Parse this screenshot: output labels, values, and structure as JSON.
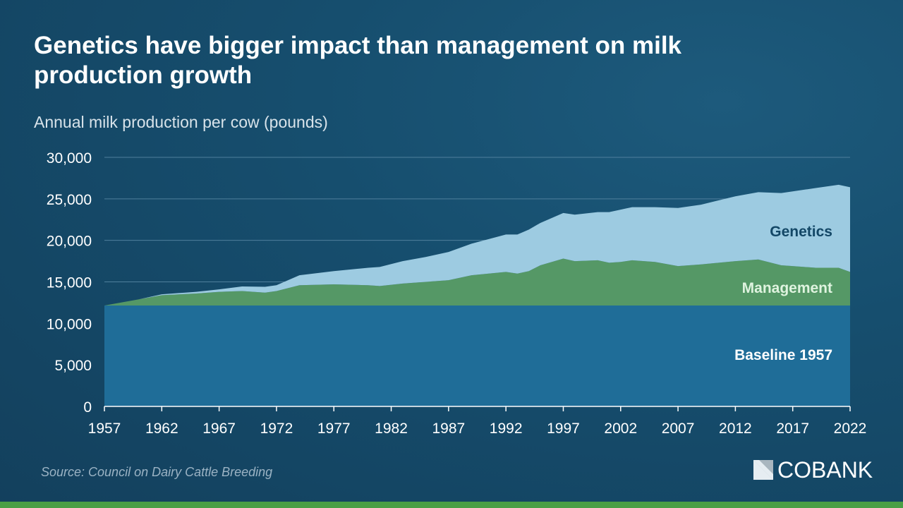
{
  "chart_data": {
    "type": "area",
    "stacked": true,
    "title": "Genetics have bigger impact than management on milk production growth",
    "subtitle": "Annual milk production per cow (pounds)",
    "source": "Source: Council on Dairy Cattle Breeding",
    "x": [
      1957,
      1960,
      1962,
      1965,
      1967,
      1969,
      1971,
      1972,
      1974,
      1977,
      1980,
      1981,
      1983,
      1985,
      1987,
      1989,
      1992,
      1993,
      1994,
      1995,
      1997,
      1998,
      2000,
      2001,
      2002,
      2003,
      2005,
      2007,
      2009,
      2012,
      2014,
      2016,
      2017,
      2019,
      2021,
      2022
    ],
    "series": [
      {
        "name": "Baseline 1957",
        "color": "#1f6d98",
        "upper_bound": [
          12150,
          12150,
          12150,
          12150,
          12150,
          12150,
          12150,
          12150,
          12150,
          12150,
          12150,
          12150,
          12150,
          12150,
          12150,
          12150,
          12150,
          12150,
          12150,
          12150,
          12150,
          12150,
          12150,
          12150,
          12150,
          12150,
          12150,
          12150,
          12150,
          12150,
          12150,
          12150,
          12150,
          12150,
          12150,
          12150
        ]
      },
      {
        "name": "Management",
        "color": "#559866",
        "upper_bound": [
          12150,
          12900,
          13400,
          13600,
          13800,
          13900,
          13700,
          13900,
          14600,
          14700,
          14600,
          14500,
          14800,
          15000,
          15200,
          15800,
          16200,
          16000,
          16300,
          17000,
          17800,
          17500,
          17600,
          17300,
          17400,
          17600,
          17400,
          16900,
          17100,
          17500,
          17700,
          17000,
          16900,
          16700,
          16700,
          16200
        ]
      },
      {
        "name": "Genetics",
        "color": "#9dcbe1",
        "upper_bound": [
          12150,
          12900,
          13500,
          13800,
          14100,
          14450,
          14400,
          14600,
          15800,
          16300,
          16700,
          16800,
          17500,
          18000,
          18600,
          19600,
          20700,
          20700,
          21300,
          22100,
          23300,
          23100,
          23400,
          23400,
          23700,
          24000,
          24000,
          23900,
          24300,
          25300,
          25800,
          25700,
          25900,
          26300,
          26700,
          26400
        ]
      }
    ],
    "label_colors": {
      "Genetics": "#134766",
      "Management": "#dff3df",
      "Baseline 1957": "#ffffff"
    },
    "ylim": [
      0,
      30000
    ],
    "xlim": [
      1957,
      2022
    ],
    "yticks": [
      0,
      5000,
      10000,
      15000,
      20000,
      25000,
      30000
    ],
    "ytick_labels": [
      "0",
      "5,000",
      "10,000",
      "15,000",
      "20,000",
      "25,000",
      "30,000"
    ],
    "xticks": [
      1957,
      1962,
      1967,
      1972,
      1977,
      1982,
      1987,
      1992,
      1997,
      2002,
      2007,
      2012,
      2017,
      2022
    ],
    "xtick_labels": [
      "1957",
      "1962",
      "1967",
      "1972",
      "1977",
      "1982",
      "1987",
      "1992",
      "1997",
      "2002",
      "2007",
      "2012",
      "2017",
      "2022"
    ],
    "grid": "horizontal"
  },
  "brand": {
    "name": "COBANK",
    "stripe_color": "#4a9f45"
  }
}
